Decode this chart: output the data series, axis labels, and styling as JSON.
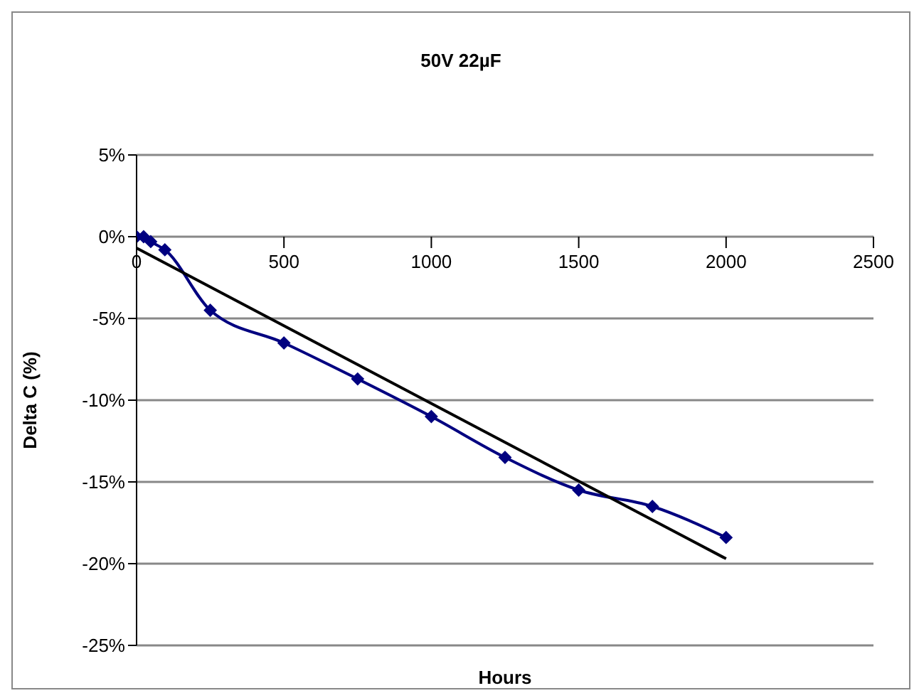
{
  "chart_data": {
    "type": "line",
    "title": "50V 22µF",
    "xlabel": "Hours",
    "ylabel": "Delta C (%)",
    "xlim": [
      0,
      2500
    ],
    "xticks": [
      0,
      500,
      1000,
      1500,
      2000,
      2500
    ],
    "ylim": [
      -25,
      5
    ],
    "yticks": [
      {
        "value": -25,
        "label": "-25%"
      },
      {
        "value": -20,
        "label": "-20%"
      },
      {
        "value": -15,
        "label": "-15%"
      },
      {
        "value": -10,
        "label": "-10%"
      },
      {
        "value": -5,
        "label": "-5%"
      },
      {
        "value": 0,
        "label": "0%"
      },
      {
        "value": 5,
        "label": "5%"
      }
    ],
    "grid": "y",
    "series": [
      {
        "color": "#000080",
        "marker": "diamond",
        "x": [
          0,
          24,
          48,
          96,
          250,
          500,
          750,
          1000,
          1250,
          1500,
          1750,
          2000
        ],
        "values": [
          0,
          0,
          -0.3,
          -0.8,
          -4.5,
          -6.5,
          -8.7,
          -11,
          -13.5,
          -15.5,
          -16.5,
          -18.4
        ]
      },
      {
        "color": "#000000",
        "marker": "none",
        "x": [
          0,
          2000
        ],
        "values": [
          -0.7,
          -19.7
        ]
      }
    ]
  }
}
